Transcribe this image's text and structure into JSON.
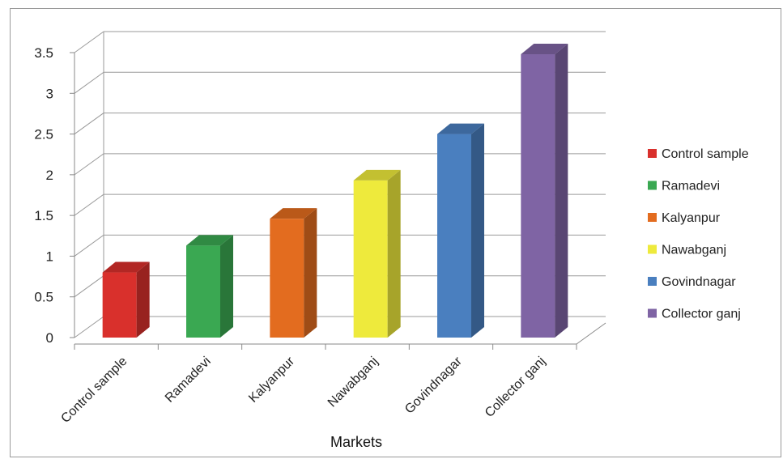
{
  "chart_data": {
    "type": "bar",
    "categories": [
      "Control sample",
      "Ramadevi",
      "Kalyanpur",
      "Nawabganj",
      "Govindnagar",
      "Collector ganj"
    ],
    "values": [
      0.8,
      1.13,
      1.46,
      1.93,
      2.5,
      3.48
    ],
    "xlabel": "Markets",
    "ylabel": "",
    "ylim": [
      0,
      3.5
    ],
    "yticks": [
      "0",
      "0.5",
      "1",
      "1.5",
      "2",
      "2.5",
      "3",
      "3.5"
    ],
    "colors": [
      "#d9302c",
      "#3aa852",
      "#e36c1f",
      "#eeea3c",
      "#4a7fbf",
      "#7f64a4"
    ],
    "legend": {
      "position": "right",
      "entries": [
        "Control sample",
        "Ramadevi",
        "Kalyanpur",
        "Nawabganj",
        "Govindnagar",
        "Collector ganj"
      ]
    },
    "grid": true,
    "style": "3d-column"
  }
}
